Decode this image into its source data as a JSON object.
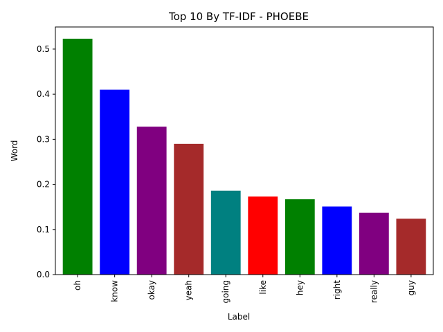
{
  "chart_data": {
    "type": "bar",
    "title": "Top 10 By TF-IDF - PHOEBE",
    "xlabel": "Label",
    "ylabel": "Word",
    "categories": [
      "oh",
      "know",
      "okay",
      "yeah",
      "going",
      "like",
      "hey",
      "right",
      "really",
      "guy"
    ],
    "values": [
      0.523,
      0.41,
      0.328,
      0.29,
      0.186,
      0.173,
      0.167,
      0.151,
      0.137,
      0.124
    ],
    "colors": [
      "#008000",
      "#0000ff",
      "#800080",
      "#a52a2a",
      "#008080",
      "#ff0000",
      "#008000",
      "#0000ff",
      "#800080",
      "#a52a2a"
    ],
    "ylim": [
      0,
      0.549
    ],
    "yticks": [
      0.0,
      0.1,
      0.2,
      0.3,
      0.4,
      0.5
    ],
    "ytick_labels": [
      "0.0",
      "0.1",
      "0.2",
      "0.3",
      "0.4",
      "0.5"
    ],
    "grid": false,
    "legend": false
  }
}
